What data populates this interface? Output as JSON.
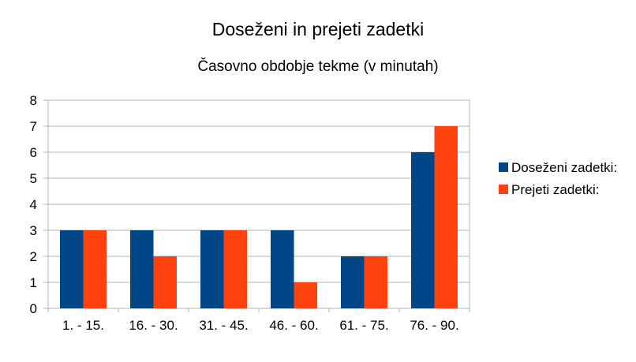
{
  "chart_data": {
    "type": "bar",
    "title": "Doseženi in prejeti zadetki",
    "subtitle": "Časovno obdobje tekme (v minutah)",
    "xlabel": "",
    "ylabel": "",
    "categories": [
      "1. - 15.",
      "16. - 30.",
      "31. - 45.",
      "46. - 60.",
      "61. - 75.",
      "76. - 90."
    ],
    "series": [
      {
        "name": "Doseženi zadetki:",
        "values": [
          3,
          3,
          3,
          3,
          2,
          6
        ],
        "color": "#004586"
      },
      {
        "name": "Prejeti zadetki:",
        "values": [
          3,
          2,
          3,
          1,
          2,
          7
        ],
        "color": "#ff420e"
      }
    ],
    "ylim": [
      0,
      8
    ],
    "yticks": [
      0,
      1,
      2,
      3,
      4,
      5,
      6,
      7,
      8
    ],
    "grid": true,
    "legend_position": "right"
  }
}
